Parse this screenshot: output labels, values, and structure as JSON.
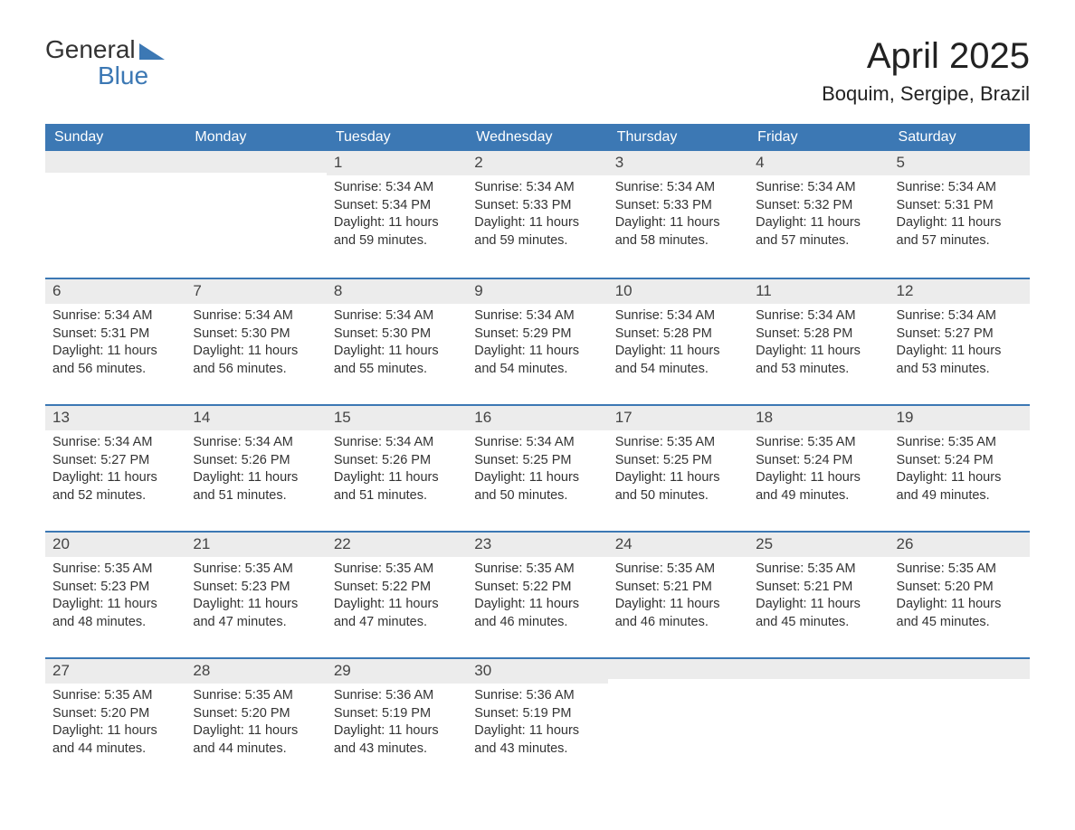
{
  "brand": {
    "line1": "General",
    "line2": "Blue",
    "brand_color": "#3c78b4"
  },
  "title": {
    "month": "April 2025",
    "location": "Boquim, Sergipe, Brazil"
  },
  "colors": {
    "header_bg": "#3c78b4",
    "header_text": "#ffffff",
    "daynum_bg": "#ececec",
    "daynum_border": "#3c78b4",
    "body_text": "#333333",
    "page_bg": "#ffffff"
  },
  "weekdays": [
    "Sunday",
    "Monday",
    "Tuesday",
    "Wednesday",
    "Thursday",
    "Friday",
    "Saturday"
  ],
  "weeks": [
    [
      {
        "n": "",
        "sr": "",
        "ss": "",
        "dl": ""
      },
      {
        "n": "",
        "sr": "",
        "ss": "",
        "dl": ""
      },
      {
        "n": "1",
        "sr": "Sunrise: 5:34 AM",
        "ss": "Sunset: 5:34 PM",
        "dl": "Daylight: 11 hours and 59 minutes."
      },
      {
        "n": "2",
        "sr": "Sunrise: 5:34 AM",
        "ss": "Sunset: 5:33 PM",
        "dl": "Daylight: 11 hours and 59 minutes."
      },
      {
        "n": "3",
        "sr": "Sunrise: 5:34 AM",
        "ss": "Sunset: 5:33 PM",
        "dl": "Daylight: 11 hours and 58 minutes."
      },
      {
        "n": "4",
        "sr": "Sunrise: 5:34 AM",
        "ss": "Sunset: 5:32 PM",
        "dl": "Daylight: 11 hours and 57 minutes."
      },
      {
        "n": "5",
        "sr": "Sunrise: 5:34 AM",
        "ss": "Sunset: 5:31 PM",
        "dl": "Daylight: 11 hours and 57 minutes."
      }
    ],
    [
      {
        "n": "6",
        "sr": "Sunrise: 5:34 AM",
        "ss": "Sunset: 5:31 PM",
        "dl": "Daylight: 11 hours and 56 minutes."
      },
      {
        "n": "7",
        "sr": "Sunrise: 5:34 AM",
        "ss": "Sunset: 5:30 PM",
        "dl": "Daylight: 11 hours and 56 minutes."
      },
      {
        "n": "8",
        "sr": "Sunrise: 5:34 AM",
        "ss": "Sunset: 5:30 PM",
        "dl": "Daylight: 11 hours and 55 minutes."
      },
      {
        "n": "9",
        "sr": "Sunrise: 5:34 AM",
        "ss": "Sunset: 5:29 PM",
        "dl": "Daylight: 11 hours and 54 minutes."
      },
      {
        "n": "10",
        "sr": "Sunrise: 5:34 AM",
        "ss": "Sunset: 5:28 PM",
        "dl": "Daylight: 11 hours and 54 minutes."
      },
      {
        "n": "11",
        "sr": "Sunrise: 5:34 AM",
        "ss": "Sunset: 5:28 PM",
        "dl": "Daylight: 11 hours and 53 minutes."
      },
      {
        "n": "12",
        "sr": "Sunrise: 5:34 AM",
        "ss": "Sunset: 5:27 PM",
        "dl": "Daylight: 11 hours and 53 minutes."
      }
    ],
    [
      {
        "n": "13",
        "sr": "Sunrise: 5:34 AM",
        "ss": "Sunset: 5:27 PM",
        "dl": "Daylight: 11 hours and 52 minutes."
      },
      {
        "n": "14",
        "sr": "Sunrise: 5:34 AM",
        "ss": "Sunset: 5:26 PM",
        "dl": "Daylight: 11 hours and 51 minutes."
      },
      {
        "n": "15",
        "sr": "Sunrise: 5:34 AM",
        "ss": "Sunset: 5:26 PM",
        "dl": "Daylight: 11 hours and 51 minutes."
      },
      {
        "n": "16",
        "sr": "Sunrise: 5:34 AM",
        "ss": "Sunset: 5:25 PM",
        "dl": "Daylight: 11 hours and 50 minutes."
      },
      {
        "n": "17",
        "sr": "Sunrise: 5:35 AM",
        "ss": "Sunset: 5:25 PM",
        "dl": "Daylight: 11 hours and 50 minutes."
      },
      {
        "n": "18",
        "sr": "Sunrise: 5:35 AM",
        "ss": "Sunset: 5:24 PM",
        "dl": "Daylight: 11 hours and 49 minutes."
      },
      {
        "n": "19",
        "sr": "Sunrise: 5:35 AM",
        "ss": "Sunset: 5:24 PM",
        "dl": "Daylight: 11 hours and 49 minutes."
      }
    ],
    [
      {
        "n": "20",
        "sr": "Sunrise: 5:35 AM",
        "ss": "Sunset: 5:23 PM",
        "dl": "Daylight: 11 hours and 48 minutes."
      },
      {
        "n": "21",
        "sr": "Sunrise: 5:35 AM",
        "ss": "Sunset: 5:23 PM",
        "dl": "Daylight: 11 hours and 47 minutes."
      },
      {
        "n": "22",
        "sr": "Sunrise: 5:35 AM",
        "ss": "Sunset: 5:22 PM",
        "dl": "Daylight: 11 hours and 47 minutes."
      },
      {
        "n": "23",
        "sr": "Sunrise: 5:35 AM",
        "ss": "Sunset: 5:22 PM",
        "dl": "Daylight: 11 hours and 46 minutes."
      },
      {
        "n": "24",
        "sr": "Sunrise: 5:35 AM",
        "ss": "Sunset: 5:21 PM",
        "dl": "Daylight: 11 hours and 46 minutes."
      },
      {
        "n": "25",
        "sr": "Sunrise: 5:35 AM",
        "ss": "Sunset: 5:21 PM",
        "dl": "Daylight: 11 hours and 45 minutes."
      },
      {
        "n": "26",
        "sr": "Sunrise: 5:35 AM",
        "ss": "Sunset: 5:20 PM",
        "dl": "Daylight: 11 hours and 45 minutes."
      }
    ],
    [
      {
        "n": "27",
        "sr": "Sunrise: 5:35 AM",
        "ss": "Sunset: 5:20 PM",
        "dl": "Daylight: 11 hours and 44 minutes."
      },
      {
        "n": "28",
        "sr": "Sunrise: 5:35 AM",
        "ss": "Sunset: 5:20 PM",
        "dl": "Daylight: 11 hours and 44 minutes."
      },
      {
        "n": "29",
        "sr": "Sunrise: 5:36 AM",
        "ss": "Sunset: 5:19 PM",
        "dl": "Daylight: 11 hours and 43 minutes."
      },
      {
        "n": "30",
        "sr": "Sunrise: 5:36 AM",
        "ss": "Sunset: 5:19 PM",
        "dl": "Daylight: 11 hours and 43 minutes."
      },
      {
        "n": "",
        "sr": "",
        "ss": "",
        "dl": ""
      },
      {
        "n": "",
        "sr": "",
        "ss": "",
        "dl": ""
      },
      {
        "n": "",
        "sr": "",
        "ss": "",
        "dl": ""
      }
    ]
  ]
}
